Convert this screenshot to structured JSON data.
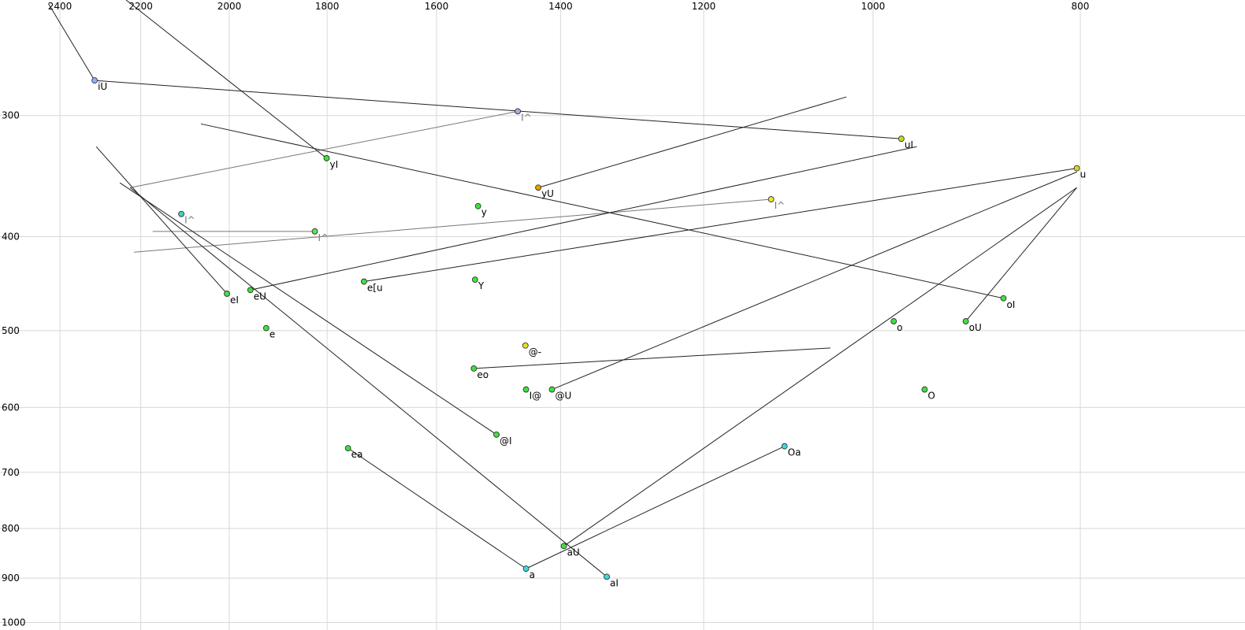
{
  "chart_data": {
    "type": "vowel-scatter",
    "x_scale": "log",
    "y_scale": "log",
    "grid": true,
    "xlim": [
      2560,
      670
    ],
    "ylim": [
      228,
      1018
    ],
    "xticks": [
      2400,
      2200,
      2000,
      1800,
      1600,
      1400,
      1200,
      1000,
      800
    ],
    "yticks": [
      300,
      400,
      500,
      600,
      700,
      800,
      900,
      1000
    ],
    "points": [
      {
        "label": "iU",
        "f2": 2312,
        "f1": 276,
        "color": "#8fb0ff",
        "f2_end": 2430,
        "f1_end": 230
      },
      {
        "label": "I^",
        "f2": 1466,
        "f1": 297,
        "color": "#a8a8e8",
        "f2_end": 2225,
        "f1_end": 356
      },
      {
        "label": "uI",
        "f2": 970,
        "f1": 317,
        "color": "#c8d820",
        "f2_end": 2312,
        "f1_end": 276
      },
      {
        "label": "yI",
        "f2": 1801,
        "f1": 332,
        "color": "#40e040",
        "f2_end": 2235,
        "f1_end": 228
      },
      {
        "label": "yU",
        "f2": 1434,
        "f1": 356,
        "color": "#e8a000",
        "f2_end": 1029,
        "f1_end": 287
      },
      {
        "label": "u",
        "f2": 803,
        "f1": 340,
        "color": "#d8d820"
      },
      {
        "label": "I^",
        "f2": 1116,
        "f1": 366,
        "color": "#e8e830",
        "f2_end": 2216,
        "f1_end": 415
      },
      {
        "label": "y",
        "f2": 1530,
        "f1": 372,
        "color": "#40e040"
      },
      {
        "label": "I^",
        "f2": 2106,
        "f1": 379,
        "color": "#40d0c0"
      },
      {
        "label": "I^",
        "f2": 1824,
        "f1": 395,
        "color": "#60e060",
        "f2_end": 2172,
        "f1_end": 395
      },
      {
        "label": "eI",
        "f2": 2005,
        "f1": 458,
        "color": "#40e040",
        "f2_end": 2308,
        "f1_end": 323
      },
      {
        "label": "eU",
        "f2": 1955,
        "f1": 454,
        "color": "#40e040",
        "f2_end": 954,
        "f1_end": 323
      },
      {
        "label": "e[u",
        "f2": 1730,
        "f1": 445,
        "color": "#40e040",
        "f2_end": 803,
        "f1_end": 340
      },
      {
        "label": "Y",
        "f2": 1535,
        "f1": 443,
        "color": "#40e040"
      },
      {
        "label": "oI",
        "f2": 869,
        "f1": 463,
        "color": "#40e040",
        "f2_end": 2062,
        "f1_end": 306
      },
      {
        "label": "o",
        "f2": 978,
        "f1": 489,
        "color": "#40e040"
      },
      {
        "label": "oU",
        "f2": 905,
        "f1": 489,
        "color": "#40e040",
        "f2_end": 803,
        "f1_end": 356
      },
      {
        "label": "e",
        "f2": 1922,
        "f1": 497,
        "color": "#40e040"
      },
      {
        "label": "@-",
        "f2": 1454,
        "f1": 518,
        "color": "#e8e020"
      },
      {
        "label": "eo",
        "f2": 1537,
        "f1": 547,
        "color": "#40e040",
        "f2_end": 1047,
        "f1_end": 521
      },
      {
        "label": "I@",
        "f2": 1453,
        "f1": 575,
        "color": "#40e040"
      },
      {
        "label": "@U",
        "f2": 1413,
        "f1": 575,
        "color": "#40e040",
        "f2_end": 803,
        "f1_end": 343
      },
      {
        "label": "O",
        "f2": 946,
        "f1": 575,
        "color": "#40e040"
      },
      {
        "label": "@I",
        "f2": 1500,
        "f1": 640,
        "color": "#40e040",
        "f2_end": 2250,
        "f1_end": 352
      },
      {
        "label": "ea",
        "f2": 1760,
        "f1": 661,
        "color": "#40e040",
        "f2_end": 1453,
        "f1_end": 880
      },
      {
        "label": "Oa",
        "f2": 1100,
        "f1": 658,
        "color": "#40d8e0",
        "f2_end": 1453,
        "f1_end": 880
      },
      {
        "label": "aU",
        "f2": 1395,
        "f1": 834,
        "color": "#40e040",
        "f2_end": 803,
        "f1_end": 356
      },
      {
        "label": "a",
        "f2": 1453,
        "f1": 880,
        "color": "#40d8e0"
      },
      {
        "label": "aI",
        "f2": 1332,
        "f1": 897,
        "color": "#40d8e0",
        "f2_end": 2225,
        "f1_end": 356
      }
    ]
  }
}
